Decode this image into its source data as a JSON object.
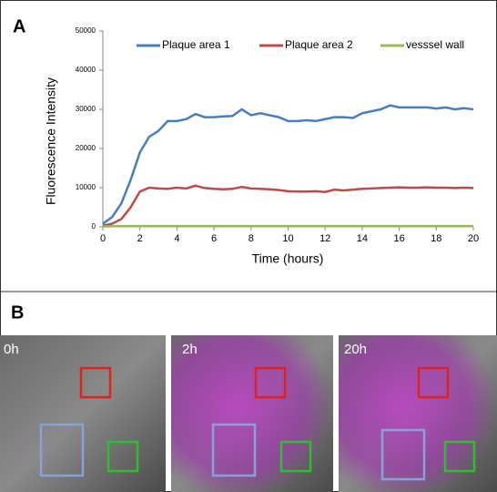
{
  "chart_data": {
    "type": "line",
    "xlabel": "Time (hours)",
    "ylabel": "Fluorescence Intensity",
    "x": [
      0,
      0.5,
      1,
      1.5,
      2,
      2.5,
      3,
      3.5,
      4,
      4.5,
      5,
      5.5,
      6,
      6.5,
      7,
      7.5,
      8,
      8.5,
      9,
      9.5,
      10,
      10.5,
      11,
      11.5,
      12,
      12.5,
      13,
      13.5,
      14,
      14.5,
      15,
      15.5,
      16,
      16.5,
      17,
      17.5,
      18,
      18.5,
      19,
      19.5,
      20
    ],
    "series": [
      {
        "name": "Plaque area 1",
        "color": "#4a7ebb",
        "values": [
          800,
          2500,
          6000,
          12000,
          19000,
          23000,
          24500,
          27000,
          27000,
          27500,
          28800,
          28000,
          28000,
          28200,
          28300,
          30000,
          28500,
          29000,
          28500,
          28000,
          27000,
          27000,
          27200,
          27000,
          27500,
          28000,
          28000,
          27800,
          29000,
          29500,
          30000,
          31000,
          30500,
          30500,
          30500,
          30500,
          30200,
          30500,
          30000,
          30300,
          30000
        ]
      },
      {
        "name": "Plaque area 2",
        "color": "#be4b48",
        "values": [
          300,
          800,
          2000,
          5000,
          9000,
          10000,
          9800,
          9700,
          10000,
          9800,
          10500,
          9900,
          9700,
          9600,
          9700,
          10200,
          9800,
          9700,
          9600,
          9400,
          9100,
          9000,
          9000,
          9100,
          8900,
          9500,
          9300,
          9500,
          9700,
          9800,
          9900,
          10000,
          10100,
          10000,
          10000,
          10100,
          10000,
          10000,
          9900,
          10000,
          9900
        ]
      },
      {
        "name": "vesssel wall",
        "color": "#98b954",
        "values": [
          100,
          150,
          200,
          200,
          200,
          200,
          200,
          200,
          200,
          200,
          200,
          200,
          200,
          200,
          200,
          200,
          200,
          200,
          200,
          200,
          200,
          200,
          200,
          200,
          200,
          200,
          200,
          200,
          200,
          200,
          200,
          200,
          200,
          200,
          200,
          200,
          200,
          200,
          200,
          200,
          200
        ]
      }
    ],
    "xlim": [
      0,
      20
    ],
    "xticks": [
      0,
      2,
      4,
      6,
      8,
      10,
      12,
      14,
      16,
      18,
      20
    ],
    "ylim": [
      0,
      50000
    ],
    "yticks": [
      0,
      10000,
      20000,
      30000,
      40000,
      50000
    ]
  },
  "panels": {
    "a_label": "A",
    "b_label": "B",
    "images": [
      "0h",
      "2h",
      "20h"
    ]
  }
}
